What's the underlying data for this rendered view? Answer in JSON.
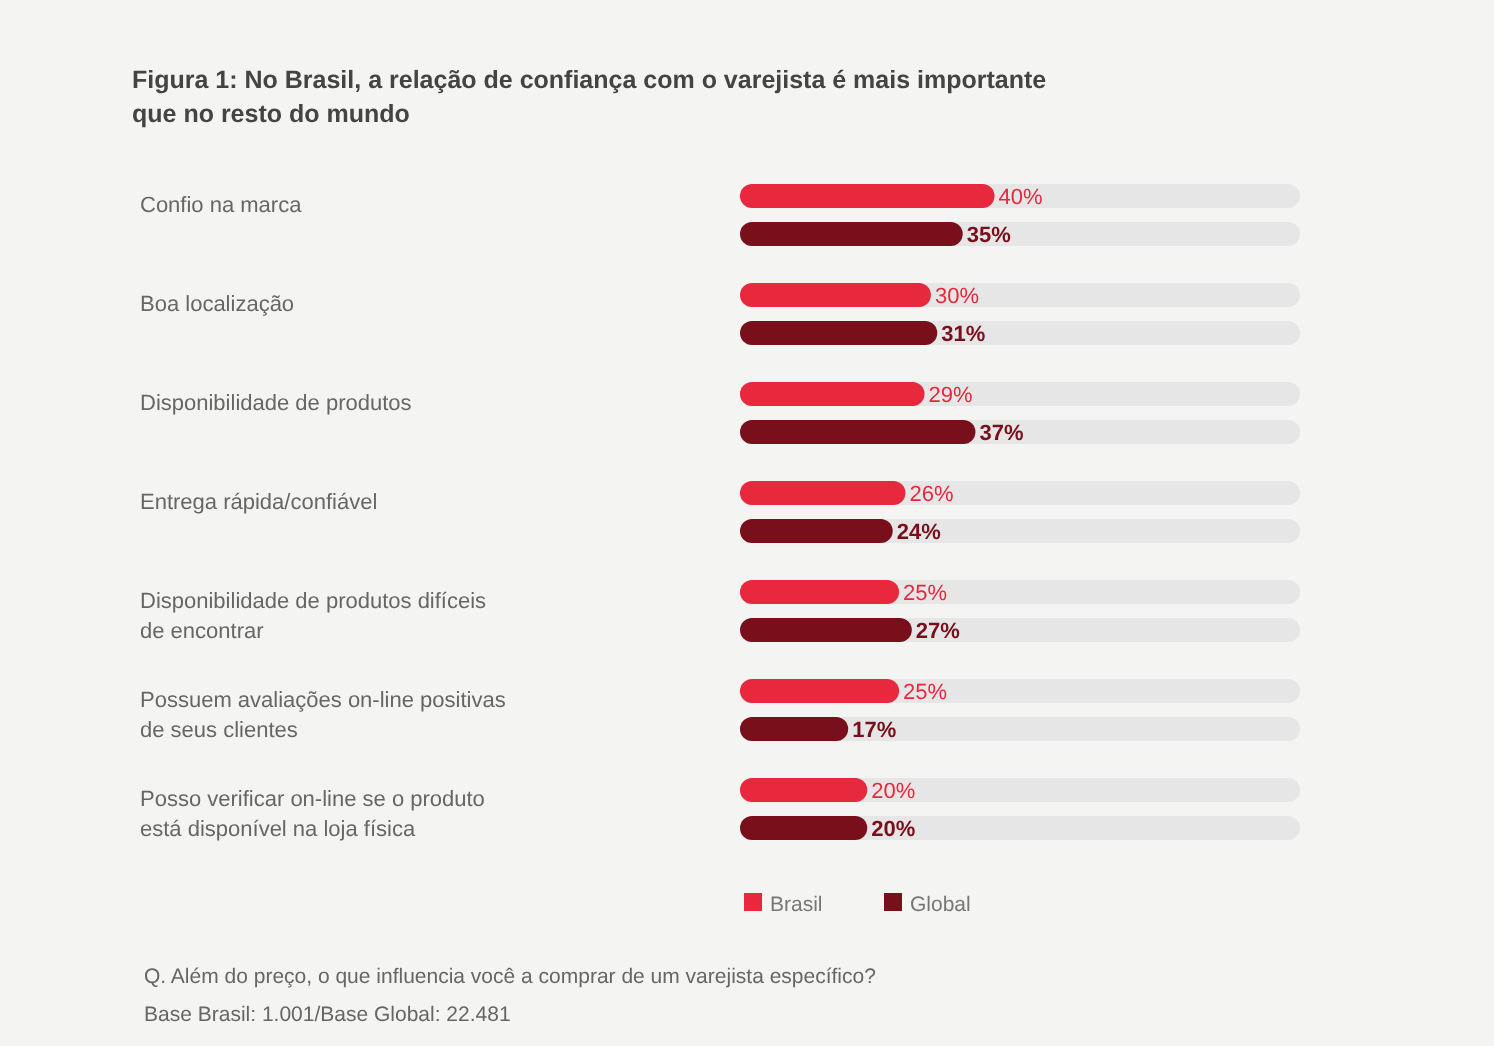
{
  "chart_data": {
    "type": "bar",
    "orientation": "horizontal",
    "title": "Figura 1: No Brasil, a relação de confiança com o varejista é mais importante que no resto do mundo",
    "categories": [
      "Confio na marca",
      "Boa localização",
      "Disponibilidade de produtos",
      "Entrega rápida/confiável",
      "Disponibilidade de produtos difíceis de encontrar",
      "Possuem avaliações on-line positivas de seus clientes",
      "Posso verificar on-line se o produto está disponível na loja física"
    ],
    "series": [
      {
        "name": "Brasil",
        "color": "#e8283c",
        "values": [
          40,
          30,
          29,
          26,
          25,
          25,
          20
        ],
        "value_labels": [
          "40%",
          "30%",
          "29%",
          "26%",
          "25%",
          "25%",
          "20%"
        ]
      },
      {
        "name": "Global",
        "color": "#7a0f1c",
        "values": [
          35,
          31,
          37,
          24,
          27,
          17,
          20
        ],
        "value_labels": [
          "35%",
          "31%",
          "37%",
          "24%",
          "27%",
          "17%",
          "20%"
        ]
      }
    ],
    "xlim": [
      0,
      88
    ],
    "tick_labels": "y",
    "legend": "bottom",
    "annotations": [
      "Q. Além do preço, o que influencia você a comprar de um varejista específico?",
      "Base Brasil: 1.001/Base Global: 22.481"
    ]
  }
}
